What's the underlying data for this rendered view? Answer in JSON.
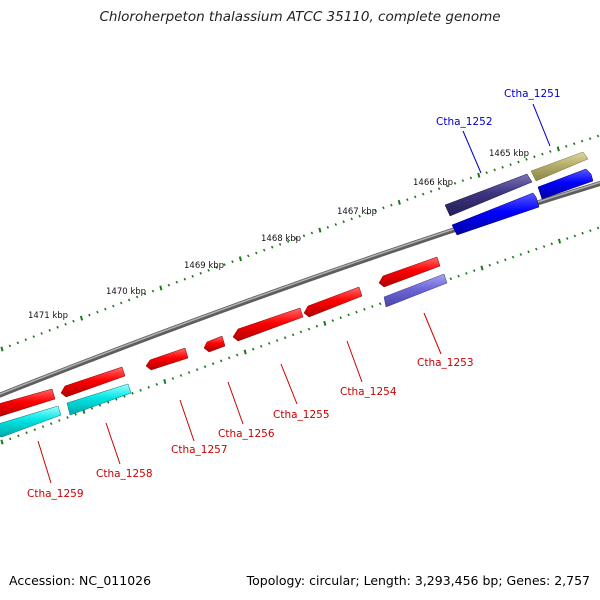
{
  "title": "Chloroherpeton thalassium ATCC 35110, complete genome",
  "footer": {
    "accession": "Accession: NC_011026",
    "summary": "Topology: circular; Length: 3,293,456 bp; Genes: 2,757"
  },
  "colors": {
    "forward_label": "#0000cc",
    "reverse_label": "#cc0000",
    "tick": "#1a7a1a",
    "backbone": "#808080"
  },
  "scale": {
    "ticks": [
      {
        "label": "1465 kbp"
      },
      {
        "label": "1466 kbp"
      },
      {
        "label": "1467 kbp"
      },
      {
        "label": "1468 kbp"
      },
      {
        "label": "1469 kbp"
      },
      {
        "label": "1470 kbp"
      },
      {
        "label": "1471 kbp"
      }
    ]
  },
  "genes": [
    {
      "name": "Ctha_1251",
      "strand": "forward"
    },
    {
      "name": "Ctha_1252",
      "strand": "forward"
    },
    {
      "name": "Ctha_1253",
      "strand": "reverse"
    },
    {
      "name": "Ctha_1254",
      "strand": "reverse"
    },
    {
      "name": "Ctha_1255",
      "strand": "reverse"
    },
    {
      "name": "Ctha_1256",
      "strand": "reverse"
    },
    {
      "name": "Ctha_1257",
      "strand": "reverse"
    },
    {
      "name": "Ctha_1258",
      "strand": "reverse"
    },
    {
      "name": "Ctha_1259",
      "strand": "reverse"
    }
  ]
}
